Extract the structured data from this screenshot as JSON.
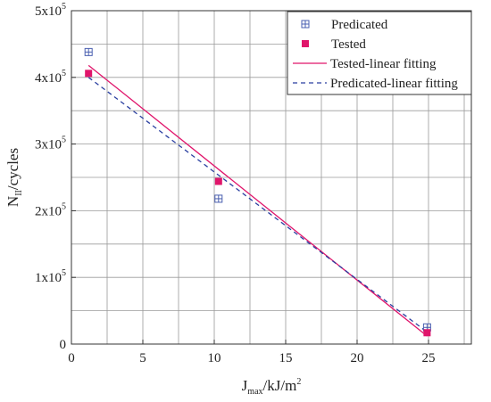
{
  "chart_data": {
    "type": "scatter",
    "x_axis": {
      "label_main": "J",
      "label_sub": "max",
      "label_rest": "/kJ/m",
      "label_sup": "2",
      "range": [
        0,
        28
      ],
      "ticks": [
        0,
        5,
        10,
        15,
        20,
        25
      ],
      "tick_labels": [
        "0",
        "5",
        "10",
        "15",
        "20",
        "25"
      ]
    },
    "y_axis": {
      "label_main": "N",
      "label_sub": "II",
      "label_rest": "/cycles",
      "range": [
        0,
        500000
      ],
      "ticks": [
        0,
        100000,
        200000,
        300000,
        400000,
        500000
      ],
      "tick_labels": [
        {
          "base": "0",
          "exp": ""
        },
        {
          "base": "1x10",
          "exp": "5"
        },
        {
          "base": "2x10",
          "exp": "5"
        },
        {
          "base": "3x10",
          "exp": "5"
        },
        {
          "base": "4x10",
          "exp": "5"
        },
        {
          "base": "5x10",
          "exp": "5"
        }
      ]
    },
    "grid": true,
    "legend_position": "top-right",
    "series": [
      {
        "name": "Predicated",
        "kind": "points",
        "marker": "crossed-square",
        "color": "#4a5fb0",
        "x": [
          1.2,
          10.3,
          24.9
        ],
        "y": [
          438000,
          218000,
          25000
        ]
      },
      {
        "name": "Tested",
        "kind": "points",
        "marker": "filled-square",
        "color": "#e0156b",
        "x": [
          1.2,
          10.3,
          24.9
        ],
        "y": [
          406000,
          244000,
          17000
        ]
      },
      {
        "name": "Tested-linear fitting",
        "kind": "line",
        "style": "solid",
        "color": "#e0156b",
        "x": [
          1.2,
          24.9
        ],
        "y": [
          418000,
          12000
        ]
      },
      {
        "name": "Predicated-linear fitting",
        "kind": "line",
        "style": "dashed",
        "color": "#2a3fa0",
        "x": [
          1.2,
          24.9
        ],
        "y": [
          400000,
          18000
        ]
      }
    ]
  }
}
